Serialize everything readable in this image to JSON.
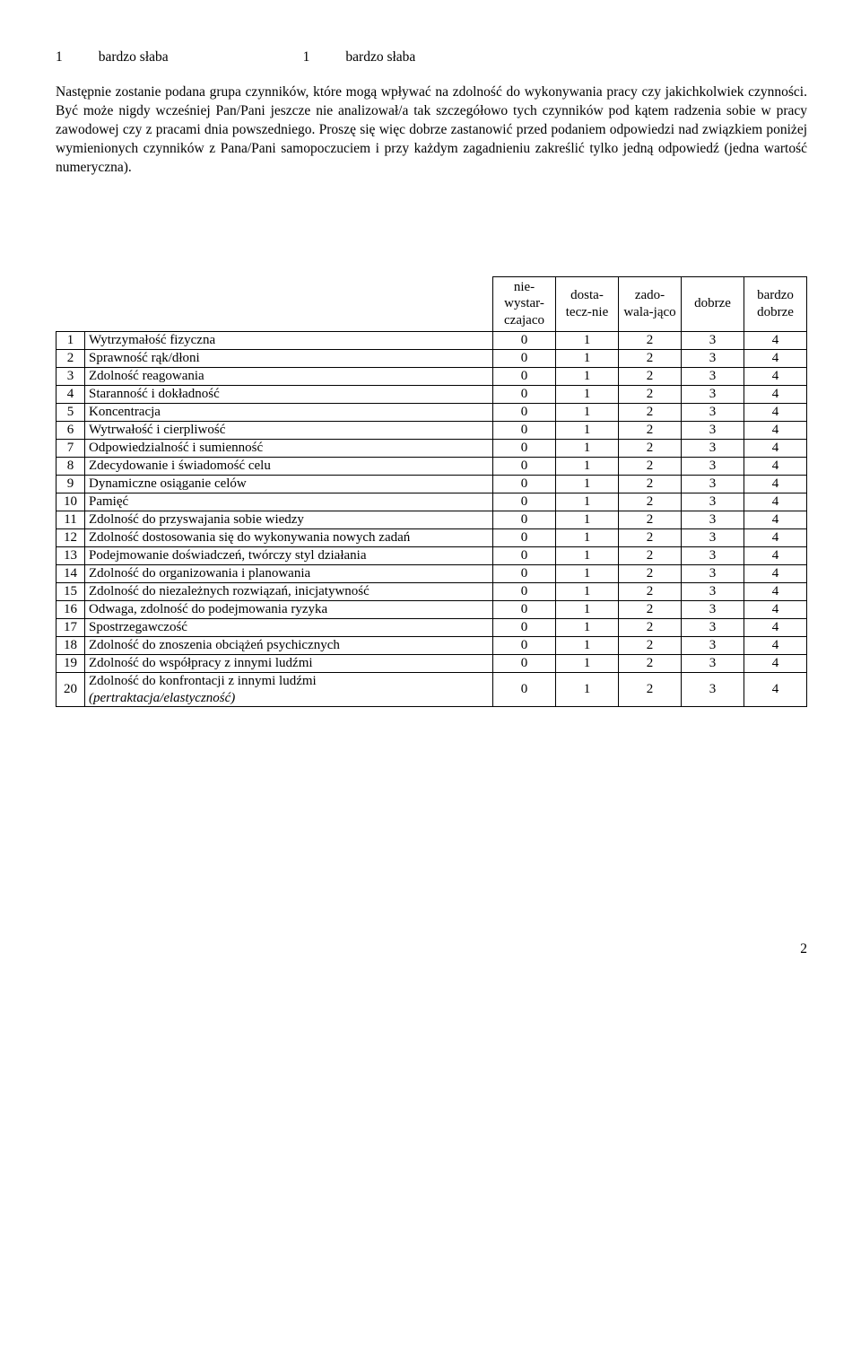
{
  "scale": {
    "left_num": "1",
    "left_label": "bardzo słaba",
    "right_num": "1",
    "right_label": "bardzo słaba"
  },
  "paragraph": "Następnie zostanie podana grupa czynników, które mogą wpływać na zdolność do wykonywania pracy czy jakichkolwiek czynności. Być może nigdy wcześniej Pan/Pani jeszcze nie analizował/a tak szczegółowo tych czynników pod kątem radzenia sobie w pracy zawodowej czy z pracami dnia powszedniego. Proszę się więc dobrze zastanowić przed podaniem odpowiedzi nad związkiem poniżej wymienionych czynników z Pana/Pani samopoczuciem i przy każdym zagadnieniu zakreślić tylko jedną odpowiedź (jedna wartość numeryczna).",
  "headers": {
    "c0": "nie-wystar-czajaco",
    "c1": "dosta-tecz-nie",
    "c2": "zado-wala-jąco",
    "c3": "dobrze",
    "c4": "bardzo dobrze"
  },
  "rows": [
    {
      "idx": "1",
      "label": "Wytrzymałość fizyczna",
      "v": [
        "0",
        "1",
        "2",
        "3",
        "4"
      ]
    },
    {
      "idx": "2",
      "label": "Sprawność rąk/dłoni",
      "v": [
        "0",
        "1",
        "2",
        "3",
        "4"
      ]
    },
    {
      "idx": "3",
      "label": "Zdolność reagowania",
      "v": [
        "0",
        "1",
        "2",
        "3",
        "4"
      ]
    },
    {
      "idx": "4",
      "label": "Staranność i dokładność",
      "v": [
        "0",
        "1",
        "2",
        "3",
        "4"
      ]
    },
    {
      "idx": "5",
      "label": "Koncentracja",
      "v": [
        "0",
        "1",
        "2",
        "3",
        "4"
      ]
    },
    {
      "idx": "6",
      "label": "Wytrwałość i cierpliwość",
      "v": [
        "0",
        "1",
        "2",
        "3",
        "4"
      ]
    },
    {
      "idx": "7",
      "label": "Odpowiedzialność i sumienność",
      "v": [
        "0",
        "1",
        "2",
        "3",
        "4"
      ]
    },
    {
      "idx": "8",
      "label": "Zdecydowanie i świadomość celu",
      "v": [
        "0",
        "1",
        "2",
        "3",
        "4"
      ]
    },
    {
      "idx": "9",
      "label": "Dynamiczne osiąganie celów",
      "v": [
        "0",
        "1",
        "2",
        "3",
        "4"
      ]
    },
    {
      "idx": "10",
      "label": "Pamięć",
      "v": [
        "0",
        "1",
        "2",
        "3",
        "4"
      ]
    },
    {
      "idx": "11",
      "label": "Zdolność do przyswajania sobie wiedzy",
      "v": [
        "0",
        "1",
        "2",
        "3",
        "4"
      ]
    },
    {
      "idx": "12",
      "label": "Zdolność dostosowania się do wykonywania nowych zadań",
      "v": [
        "0",
        "1",
        "2",
        "3",
        "4"
      ]
    },
    {
      "idx": "13",
      "label": "Podejmowanie doświadczeń, twórczy styl działania",
      "v": [
        "0",
        "1",
        "2",
        "3",
        "4"
      ]
    },
    {
      "idx": "14",
      "label": "Zdolność do organizowania i planowania",
      "v": [
        "0",
        "1",
        "2",
        "3",
        "4"
      ]
    },
    {
      "idx": "15",
      "label": "Zdolność do niezależnych rozwiązań, inicjatywność",
      "v": [
        "0",
        "1",
        "2",
        "3",
        "4"
      ]
    },
    {
      "idx": "16",
      "label": "Odwaga, zdolność do podejmowania ryzyka",
      "v": [
        "0",
        "1",
        "2",
        "3",
        "4"
      ]
    },
    {
      "idx": "17",
      "label": "Spostrzegawczość",
      "v": [
        "0",
        "1",
        "2",
        "3",
        "4"
      ]
    },
    {
      "idx": "18",
      "label": "Zdolność do znoszenia obciążeń psychicznych",
      "v": [
        "0",
        "1",
        "2",
        "3",
        "4"
      ]
    },
    {
      "idx": "19",
      "label": "Zdolność do współpracy z innymi ludźmi",
      "v": [
        "0",
        "1",
        "2",
        "3",
        "4"
      ]
    }
  ],
  "row20": {
    "idx": "20",
    "label_line1": "Zdolność do konfrontacji z innymi ludźmi",
    "label_line2": "(pertraktacja/elastyczność)",
    "v": [
      "0",
      "1",
      "2",
      "3",
      "4"
    ]
  },
  "page_number": "2"
}
